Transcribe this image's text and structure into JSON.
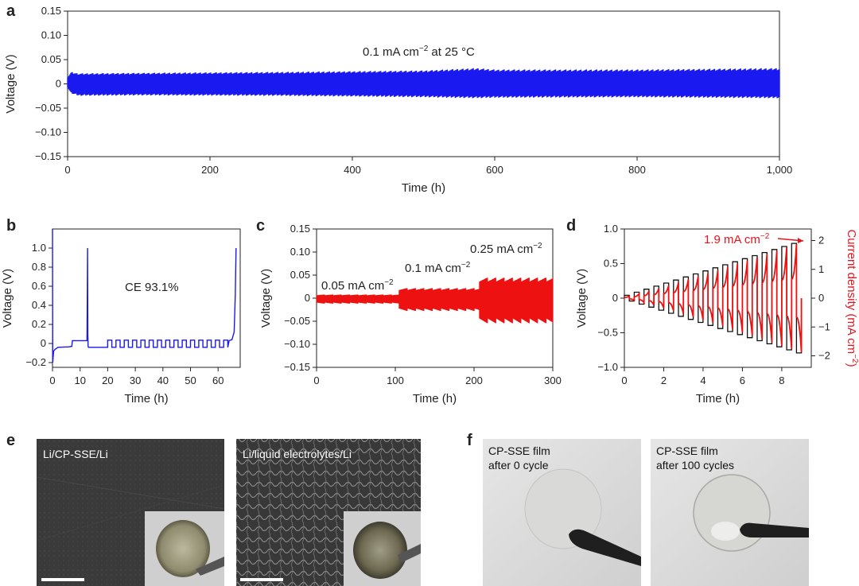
{
  "colors": {
    "blue": "#1a1af0",
    "red": "#ee1111",
    "black": "#111111"
  },
  "panels": {
    "a": {
      "label": "a",
      "annotation": "0.1 mA cm",
      "annotation_sup": "−2",
      "annotation_tail": " at 25 °C"
    },
    "b": {
      "label": "b",
      "annotation": "CE 93.1%"
    },
    "c": {
      "label": "c",
      "ann1": "0.05 mA cm",
      "ann2": "0.1 mA cm",
      "ann3": "0.25 mA cm",
      "sup": "−2"
    },
    "d": {
      "label": "d",
      "annotation": "1.9 mA cm",
      "annotation_sup": "−2"
    },
    "e": {
      "label": "e",
      "left_caption": "Li/CP-SSE/Li",
      "right_caption": "Li/liquid electrolytes/Li"
    },
    "f": {
      "label": "f",
      "left_caption_1": "CP-SSE film",
      "left_caption_2": "after 0 cycle",
      "right_caption_1": "CP-SSE film",
      "right_caption_2": "after 100 cycles"
    }
  },
  "chart_data": [
    {
      "panel": "a",
      "type": "line",
      "xlabel": "Time (h)",
      "ylabel": "Voltage (V)",
      "xlim": [
        0,
        1000
      ],
      "ylim": [
        -0.15,
        0.15
      ],
      "xticks": [
        "0",
        "200",
        "400",
        "600",
        "800",
        "1,000"
      ],
      "yticks": [
        "−0.15",
        "−0.10",
        "−0.05",
        "0",
        "0.05",
        "0.10",
        "0.15"
      ],
      "series": [
        {
          "color": "#1a1af0",
          "envelope_x": [
            0,
            5,
            15,
            100,
            300,
            500,
            575,
            600,
            800,
            1000
          ],
          "upper": [
            0.015,
            0.025,
            0.022,
            0.023,
            0.025,
            0.028,
            0.033,
            0.03,
            0.03,
            0.033
          ],
          "lower": [
            -0.008,
            -0.02,
            -0.025,
            -0.024,
            -0.025,
            -0.028,
            -0.03,
            -0.029,
            -0.028,
            -0.03
          ]
        }
      ]
    },
    {
      "panel": "b",
      "type": "line",
      "xlabel": "Time (h)",
      "ylabel": "Voltage (V)",
      "xlim": [
        0,
        68
      ],
      "ylim": [
        -0.25,
        1.2
      ],
      "xticks": [
        "0",
        "10",
        "20",
        "30",
        "40",
        "50",
        "60"
      ],
      "yticks": [
        "−0.2",
        "0",
        "0.2",
        "0.4",
        "0.6",
        "0.8",
        "1.0"
      ],
      "series": [
        {
          "color": "#1a1af0",
          "x": [
            0,
            0.1,
            0.4,
            1,
            2,
            6,
            7,
            7.2,
            12.5,
            12.7,
            12.8,
            12.9,
            13.0,
            15,
            20
          ],
          "y": [
            1.2,
            -0.2,
            -0.08,
            -0.06,
            -0.04,
            -0.035,
            -0.03,
            0.03,
            0.03,
            1.0,
            0.1,
            -0.03,
            -0.04,
            -0.04,
            -0.04
          ],
          "pulses_start": 20,
          "pulses_end": 64,
          "pulse_period": 3,
          "pulse_high": 0.035,
          "pulse_low": -0.04,
          "tail_x": [
            64,
            65,
            65.8,
            66.2,
            66.5
          ],
          "tail_y": [
            0.03,
            0.04,
            0.12,
            0.5,
            1.0
          ]
        }
      ]
    },
    {
      "panel": "c",
      "type": "line",
      "xlabel": "Time (h)",
      "ylabel": "Voltage (V)",
      "xlim": [
        0,
        300
      ],
      "ylim": [
        -0.15,
        0.15
      ],
      "xticks": [
        "0",
        "100",
        "200",
        "300"
      ],
      "yticks": [
        "−0.15",
        "−0.10",
        "−0.05",
        "0",
        "0.05",
        "0.10",
        "0.15"
      ],
      "series": [
        {
          "color": "#ee1111",
          "segments": [
            {
              "x0": 0,
              "x1": 105,
              "upper": 0.008,
              "lower": -0.012
            },
            {
              "x0": 105,
              "x1": 207,
              "upper": 0.022,
              "lower": -0.028
            },
            {
              "x0": 207,
              "x1": 305,
              "upper": 0.045,
              "lower": -0.055
            }
          ]
        }
      ]
    },
    {
      "panel": "d",
      "type": "line",
      "xlabel": "Time (h)",
      "ylabel": "Voltage (V)",
      "y2label": "Current density (mA cm",
      "y2label_sup": "−2",
      "y2label_tail": ")",
      "xlim": [
        0,
        9.5
      ],
      "ylim": [
        -1.0,
        1.0
      ],
      "y2lim": [
        -2.4,
        2.4
      ],
      "xticks": [
        "0",
        "2",
        "4",
        "6",
        "8"
      ],
      "yticks": [
        "−1.0",
        "−0.5",
        "0",
        "0.5",
        "1.0"
      ],
      "y2ticks": [
        "−2",
        "−1",
        "0",
        "1",
        "2"
      ],
      "series": [
        {
          "name": "current",
          "color": "#111111",
          "cycles": 18,
          "step_h": 0.5,
          "start_current": 0.1,
          "end_current": 1.9
        },
        {
          "name": "voltage",
          "color": "#ee1111",
          "cycles": 18,
          "step_h": 0.5,
          "start_peak": 0.03,
          "end_peak": 0.78
        }
      ]
    }
  ]
}
